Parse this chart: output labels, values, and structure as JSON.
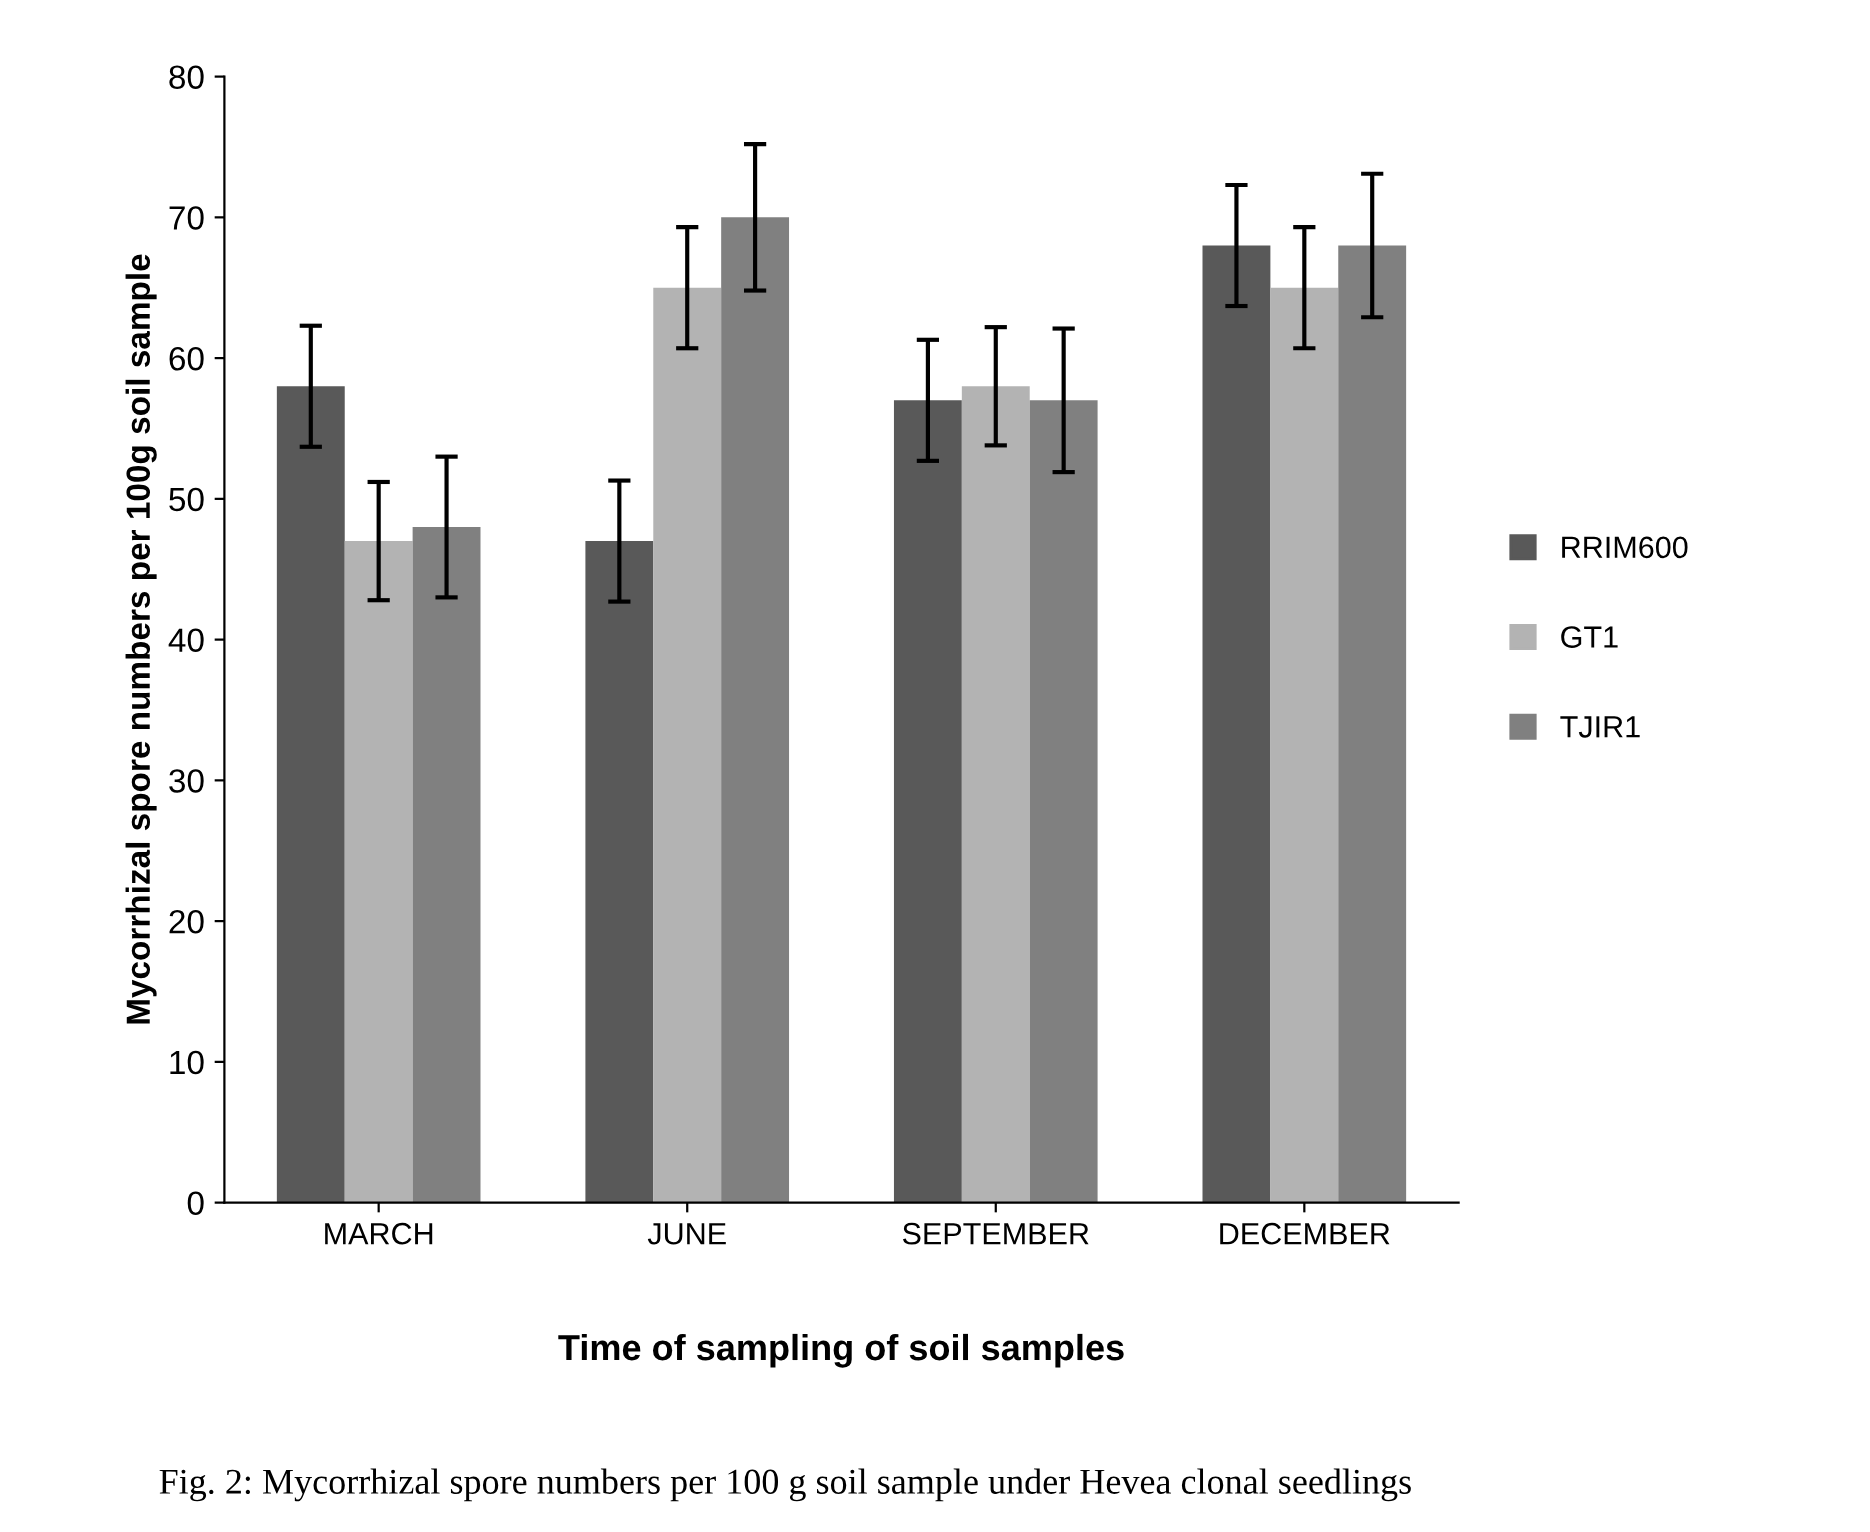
{
  "chart_data": {
    "type": "bar",
    "xlabel": "Time of sampling of soil samples",
    "ylabel": "Mycorrhizal spore numbers per 100g soil sample",
    "categories": [
      "MARCH",
      "JUNE",
      "SEPTEMBER",
      "DECEMBER"
    ],
    "series": [
      {
        "name": "RRIM600",
        "color": "#595959",
        "values": [
          58,
          47,
          57,
          68
        ],
        "errors": [
          4.3,
          4.3,
          4.3,
          4.3
        ]
      },
      {
        "name": "GT1",
        "color": "#b3b3b3",
        "values": [
          47,
          65,
          58,
          65
        ],
        "errors": [
          4.2,
          4.3,
          4.2,
          4.3
        ]
      },
      {
        "name": "TJIR1",
        "color": "#808080",
        "values": [
          48,
          70,
          57,
          68
        ],
        "errors": [
          5,
          5.2,
          5.1,
          5.1
        ]
      }
    ],
    "ylim": [
      0,
      80
    ],
    "yticks": [
      0,
      10,
      20,
      30,
      40,
      50,
      60,
      70,
      80
    ],
    "grid": false,
    "legend": "right",
    "annotations": [
      "Fig. 2: Mycorrhizal spore numbers per 100 g soil sample under Hevea clonal seedlings"
    ]
  }
}
